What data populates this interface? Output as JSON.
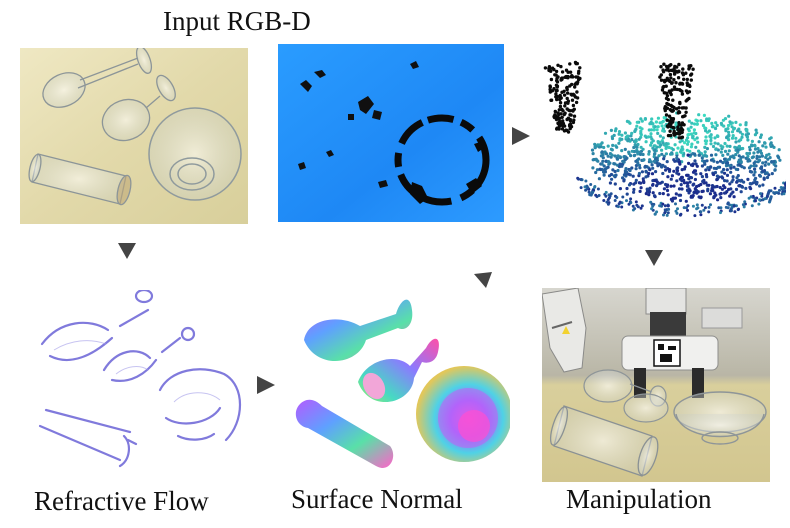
{
  "labels": {
    "input": "Input RGB-D",
    "flow": "Refractive Flow",
    "normal": "Surface Normal",
    "manipulation": "Manipulation"
  },
  "colors": {
    "arrow": "#444444",
    "depth_blue": "#1e8cff",
    "rgb_bg": "#e4dcaf",
    "flow_line": "#6b63d6",
    "point_cloud_dark": "#1b2b8c",
    "point_cloud_light": "#3de0c2"
  },
  "panels": [
    {
      "id": "rgb",
      "icon": "glassware-photo"
    },
    {
      "id": "depth",
      "icon": "depth-map"
    },
    {
      "id": "pointcloud",
      "icon": "point-cloud"
    },
    {
      "id": "flow",
      "icon": "refractive-flow"
    },
    {
      "id": "normal",
      "icon": "normal-map"
    },
    {
      "id": "robot",
      "icon": "robot-gripper-photo"
    }
  ]
}
